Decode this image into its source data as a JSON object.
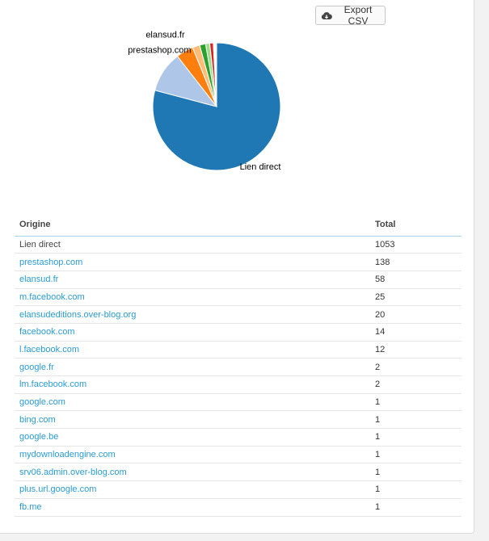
{
  "toolbar": {
    "export_label": "Export CSV",
    "export_icon": "cloud-download-icon"
  },
  "chart_data": {
    "type": "pie",
    "slices": [
      {
        "label": "Lien direct",
        "value": 1053,
        "color": "#1f77b4",
        "show_label": true
      },
      {
        "label": "prestashop.com",
        "value": 138,
        "color": "#aec7e8",
        "show_label": true
      },
      {
        "label": "elansud.fr",
        "value": 58,
        "color": "#ff7f0e",
        "show_label": true
      },
      {
        "label": "m.facebook.com",
        "value": 25,
        "color": "#ffbb78",
        "show_label": false
      },
      {
        "label": "elansudeditions.over-blog.org",
        "value": 20,
        "color": "#2ca02c",
        "show_label": false
      },
      {
        "label": "facebook.com",
        "value": 14,
        "color": "#98df8a",
        "show_label": false
      },
      {
        "label": "l.facebook.com",
        "value": 12,
        "color": "#d62728",
        "show_label": false
      },
      {
        "label": "google.fr",
        "value": 2,
        "color": "#ff9896",
        "show_label": false
      },
      {
        "label": "lm.facebook.com",
        "value": 2,
        "color": "#9467bd",
        "show_label": false
      },
      {
        "label": "google.com",
        "value": 1,
        "color": "#c5b0d5",
        "show_label": false
      },
      {
        "label": "bing.com",
        "value": 1,
        "color": "#8c564b",
        "show_label": false
      },
      {
        "label": "google.be",
        "value": 1,
        "color": "#c49c94",
        "show_label": false
      },
      {
        "label": "mydownloadengine.com",
        "value": 1,
        "color": "#e377c2",
        "show_label": false
      },
      {
        "label": "srv06.admin.over-blog.com",
        "value": 1,
        "color": "#f7b6d2",
        "show_label": false
      },
      {
        "label": "plus.url.google.com",
        "value": 1,
        "color": "#7f7f7f",
        "show_label": false
      },
      {
        "label": "fb.me",
        "value": 1,
        "color": "#c7c7c7",
        "show_label": false
      }
    ]
  },
  "table": {
    "headers": {
      "origin": "Origine",
      "total": "Total"
    },
    "rows": [
      {
        "origin": "Lien direct",
        "total": "1053",
        "link": false
      },
      {
        "origin": "prestashop.com",
        "total": "138",
        "link": true
      },
      {
        "origin": "elansud.fr",
        "total": "58",
        "link": true
      },
      {
        "origin": "m.facebook.com",
        "total": "25",
        "link": true
      },
      {
        "origin": "elansudeditions.over-blog.org",
        "total": "20",
        "link": true
      },
      {
        "origin": "facebook.com",
        "total": "14",
        "link": true
      },
      {
        "origin": "l.facebook.com",
        "total": "12",
        "link": true
      },
      {
        "origin": "google.fr",
        "total": "2",
        "link": true
      },
      {
        "origin": "lm.facebook.com",
        "total": "2",
        "link": true
      },
      {
        "origin": "google.com",
        "total": "1",
        "link": true
      },
      {
        "origin": "bing.com",
        "total": "1",
        "link": true
      },
      {
        "origin": "google.be",
        "total": "1",
        "link": true
      },
      {
        "origin": "mydownloadengine.com",
        "total": "1",
        "link": true
      },
      {
        "origin": "srv06.admin.over-blog.com",
        "total": "1",
        "link": true
      },
      {
        "origin": "plus.url.google.com",
        "total": "1",
        "link": true
      },
      {
        "origin": "fb.me",
        "total": "1",
        "link": true
      }
    ]
  }
}
